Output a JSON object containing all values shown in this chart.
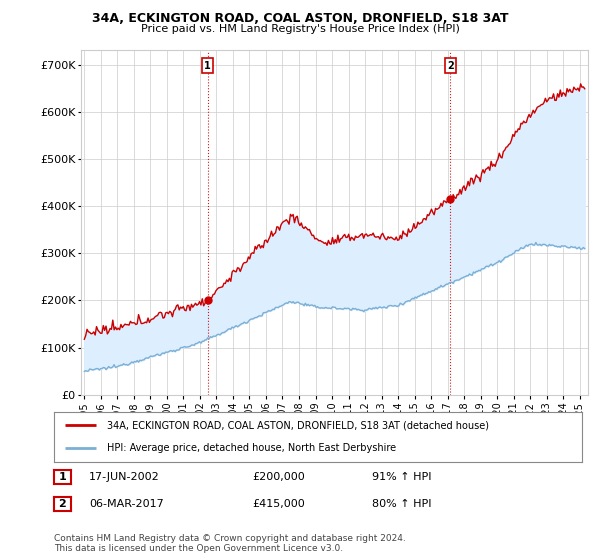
{
  "title": "34A, ECKINGTON ROAD, COAL ASTON, DRONFIELD, S18 3AT",
  "subtitle": "Price paid vs. HM Land Registry's House Price Index (HPI)",
  "ylabel_ticks": [
    "£0",
    "£100K",
    "£200K",
    "£300K",
    "£400K",
    "£500K",
    "£600K",
    "£700K"
  ],
  "ytick_values": [
    0,
    100000,
    200000,
    300000,
    400000,
    500000,
    600000,
    700000
  ],
  "ylim": [
    0,
    730000
  ],
  "xlim_start": 1994.8,
  "xlim_end": 2025.5,
  "xticks": [
    1995,
    1996,
    1997,
    1998,
    1999,
    2000,
    2001,
    2002,
    2003,
    2004,
    2005,
    2006,
    2007,
    2008,
    2009,
    2010,
    2011,
    2012,
    2013,
    2014,
    2015,
    2016,
    2017,
    2018,
    2019,
    2020,
    2021,
    2022,
    2023,
    2024,
    2025
  ],
  "sale1_date": 2002.46,
  "sale1_price": 200000,
  "sale2_date": 2017.17,
  "sale2_price": 415000,
  "red_line_color": "#cc0000",
  "blue_line_color": "#7bafd4",
  "fill_color": "#ddeeff",
  "grid_color": "#cccccc",
  "legend_label_red": "34A, ECKINGTON ROAD, COAL ASTON, DRONFIELD, S18 3AT (detached house)",
  "legend_label_blue": "HPI: Average price, detached house, North East Derbyshire",
  "table_row1": [
    "1",
    "17-JUN-2002",
    "£200,000",
    "91% ↑ HPI"
  ],
  "table_row2": [
    "2",
    "06-MAR-2017",
    "£415,000",
    "80% ↑ HPI"
  ],
  "footer": "Contains HM Land Registry data © Crown copyright and database right 2024.\nThis data is licensed under the Open Government Licence v3.0.",
  "background_color": "#ffffff"
}
